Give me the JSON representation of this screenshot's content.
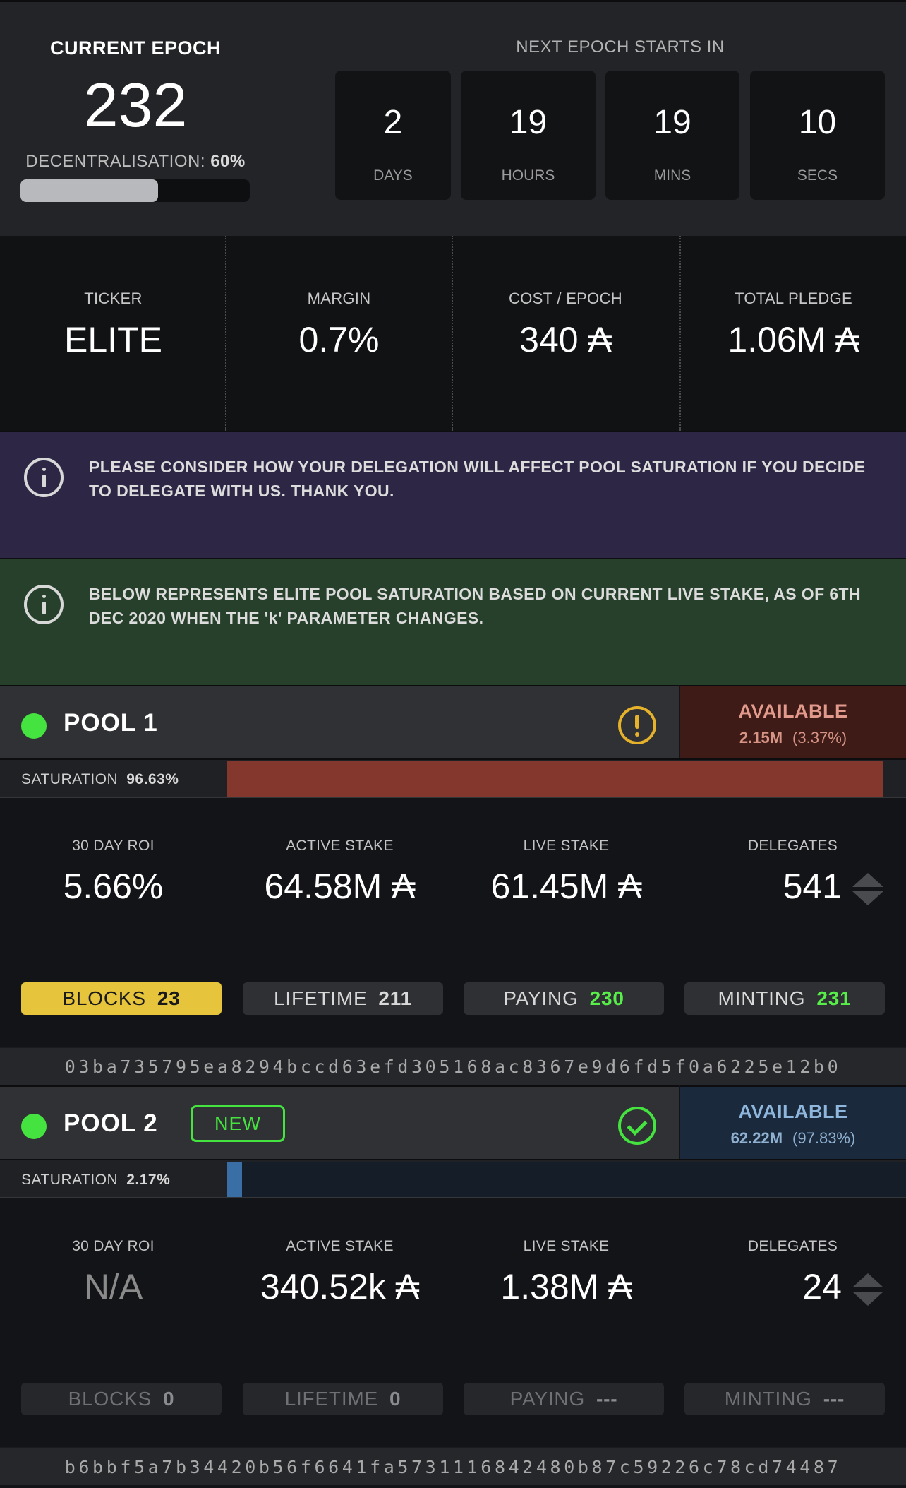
{
  "epoch": {
    "title": "CURRENT EPOCH",
    "number": "232",
    "decentralisation_label": "DECENTRALISATION:",
    "decentralisation_value": "60%",
    "decentralisation_progress": 0.6,
    "next_title": "NEXT EPOCH STARTS IN",
    "countdown": [
      {
        "value": "2",
        "label": "DAYS"
      },
      {
        "value": "19",
        "label": "HOURS"
      },
      {
        "value": "19",
        "label": "MINS"
      },
      {
        "value": "10",
        "label": "SECS"
      }
    ]
  },
  "stats": [
    {
      "label": "TICKER",
      "value": "ELITE"
    },
    {
      "label": "MARGIN",
      "value": "0.7%"
    },
    {
      "label": "COST / EPOCH",
      "value": "340 ₳"
    },
    {
      "label": "TOTAL PLEDGE",
      "value": "1.06M ₳"
    }
  ],
  "banners": [
    {
      "text": "PLEASE CONSIDER HOW YOUR DELEGATION WILL AFFECT POOL SATURATION IF YOU DECIDE TO DELEGATE WITH US. THANK YOU.",
      "color": "#2d2745",
      "icon": "info-icon"
    },
    {
      "text": "BELOW REPRESENTS ELITE POOL SATURATION BASED ON CURRENT LIVE STAKE, AS OF 6TH DEC 2020 WHEN THE 'k' PARAMETER CHANGES.",
      "color": "#27402c",
      "icon": "info-icon"
    }
  ],
  "pools": [
    {
      "name": "POOL 1",
      "badge": "",
      "status_icon": "warning-icon",
      "available_title": "AVAILABLE",
      "available_amount": "2.15M",
      "available_pct": "(3.37%)",
      "available_bg": "#3e1b17",
      "available_title_color": "#e29a8c",
      "available_sub_color": "#d79486",
      "saturation_label": "SATURATION",
      "saturation_value": "96.63%",
      "saturation_fraction": 0.9663,
      "saturation_color": "#84372d",
      "saturation_track_color": "#202124",
      "metrics": [
        {
          "label": "30 DAY ROI",
          "value": "5.66%"
        },
        {
          "label": "ACTIVE STAKE",
          "value": "64.58M ₳"
        },
        {
          "label": "LIVE STAKE",
          "value": "61.45M ₳"
        },
        {
          "label": "DELEGATES",
          "value": "541"
        }
      ],
      "pills": [
        {
          "label": "BLOCKS",
          "value": "23",
          "style": "gold"
        },
        {
          "label": "LIFETIME",
          "value": "211",
          "style": "plain"
        },
        {
          "label": "PAYING",
          "value": "230",
          "style": "green"
        },
        {
          "label": "MINTING",
          "value": "231",
          "style": "green"
        }
      ],
      "pool_id": "03ba735795ea8294bccd63efd305168ac8367e9d6fd5f0a6225e12b0"
    },
    {
      "name": "POOL 2",
      "badge": "NEW",
      "status_icon": "check-circle-icon",
      "available_title": "AVAILABLE",
      "available_amount": "62.22M",
      "available_pct": "(97.83%)",
      "available_bg": "#1a2a3c",
      "available_title_color": "#8fb6dc",
      "available_sub_color": "#8fb0d0",
      "saturation_label": "SATURATION",
      "saturation_value": "2.17%",
      "saturation_fraction": 0.0217,
      "saturation_color": "#3a6fa6",
      "saturation_track_color": "#151d28",
      "metrics": [
        {
          "label": "30 DAY ROI",
          "value": "N/A"
        },
        {
          "label": "ACTIVE STAKE",
          "value": "340.52k ₳"
        },
        {
          "label": "LIVE STAKE",
          "value": "1.38M ₳"
        },
        {
          "label": "DELEGATES",
          "value": "24"
        }
      ],
      "pills": [
        {
          "label": "BLOCKS",
          "value": "0",
          "style": "dim"
        },
        {
          "label": "LIFETIME",
          "value": "0",
          "style": "dim"
        },
        {
          "label": "PAYING",
          "value": "---",
          "style": "dim"
        },
        {
          "label": "MINTING",
          "value": "---",
          "style": "dim"
        }
      ],
      "pool_id": "b6bbf5a7b34420b56f6641fa5731116842480b87c59226c78cd74487"
    }
  ]
}
